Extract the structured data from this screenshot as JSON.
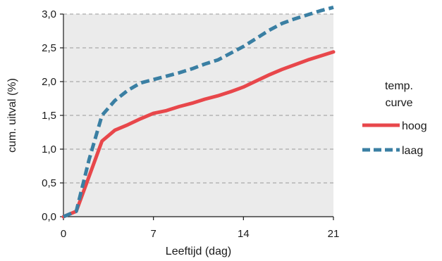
{
  "chart_data": {
    "type": "line",
    "xlabel": "Leeftijd (dag)",
    "ylabel": "cum. uitval (%)",
    "xlim": [
      0,
      21
    ],
    "ylim": [
      0,
      3.0
    ],
    "xticks": [
      0,
      7,
      14,
      21
    ],
    "xtick_labels": [
      "0",
      "7",
      "14",
      "21"
    ],
    "yticks": [
      0,
      0.5,
      1.0,
      1.5,
      2.0,
      2.5,
      3.0
    ],
    "ytick_labels": [
      "0,0",
      "0,5",
      "1,0",
      "1,5",
      "2,0",
      "2,5",
      "3,0"
    ],
    "grid": "horizontal-dashed",
    "legend": {
      "title_line1": "temp.",
      "title_line2": "curve",
      "position": "right"
    },
    "series": [
      {
        "name": "hoog",
        "color": "#e8474b",
        "style": "solid",
        "x": [
          0,
          1,
          2,
          3,
          4,
          5,
          6,
          7,
          8,
          9,
          10,
          11,
          12,
          13,
          14,
          15,
          16,
          17,
          18,
          19,
          20,
          21
        ],
        "y": [
          0.0,
          0.08,
          0.6,
          1.12,
          1.28,
          1.36,
          1.45,
          1.53,
          1.57,
          1.63,
          1.68,
          1.74,
          1.79,
          1.85,
          1.92,
          2.01,
          2.1,
          2.18,
          2.25,
          2.32,
          2.38,
          2.44
        ]
      },
      {
        "name": "laag",
        "color": "#3a7fa3",
        "style": "dashed",
        "x": [
          0,
          1,
          2,
          3,
          4,
          5,
          6,
          7,
          8,
          9,
          10,
          11,
          12,
          13,
          14,
          15,
          16,
          17,
          18,
          19,
          20,
          21
        ],
        "y": [
          0.0,
          0.08,
          0.85,
          1.5,
          1.72,
          1.87,
          1.98,
          2.03,
          2.08,
          2.13,
          2.19,
          2.26,
          2.32,
          2.42,
          2.52,
          2.64,
          2.76,
          2.86,
          2.93,
          2.99,
          3.05,
          3.1
        ]
      }
    ]
  }
}
